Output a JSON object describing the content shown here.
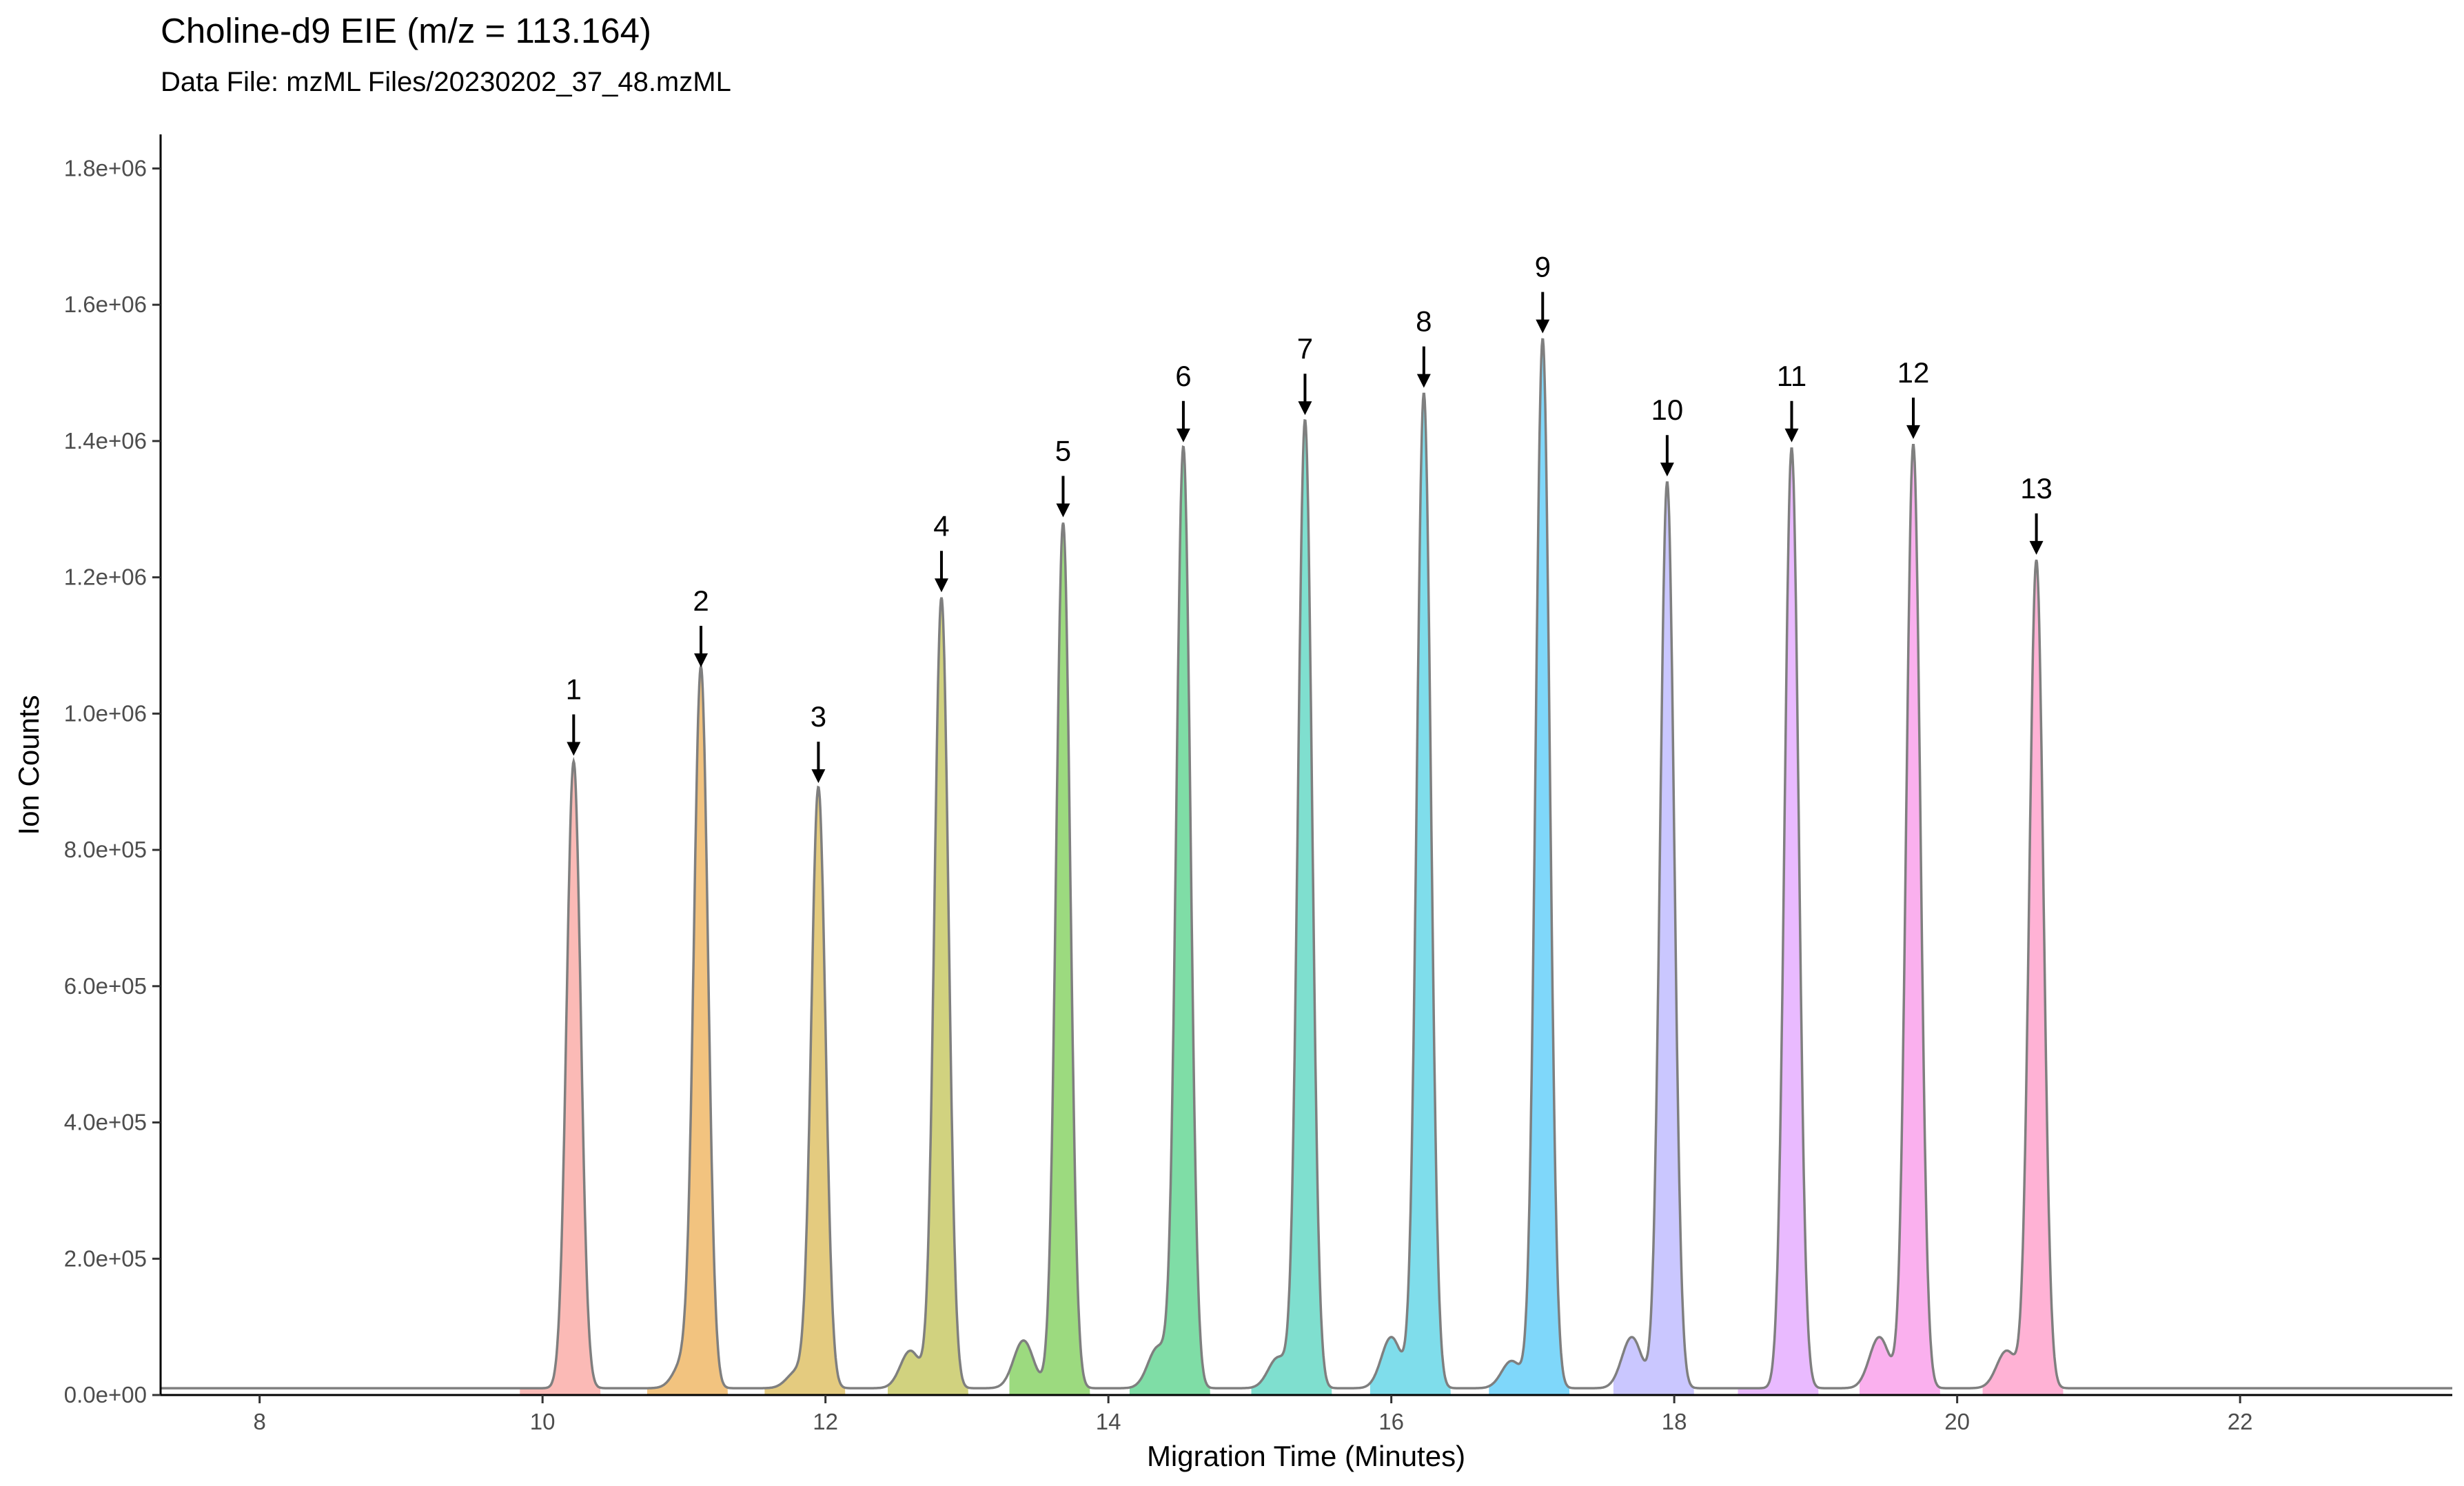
{
  "chart_data": {
    "type": "area",
    "title": "Choline-d9 EIE (m/z = 113.164)",
    "subtitle": "Data File:  mzML Files/20230202_37_48.mzML",
    "xlabel": "Migration Time (Minutes)",
    "ylabel": "Ion Counts",
    "xlim": [
      7.3,
      23.5
    ],
    "ylim": [
      0,
      1850000
    ],
    "x_ticks": [
      8,
      10,
      12,
      14,
      16,
      18,
      20,
      22
    ],
    "x_tick_labels": [
      "8",
      "10",
      "12",
      "14",
      "16",
      "18",
      "20",
      "22"
    ],
    "y_ticks": [
      0,
      200000,
      400000,
      600000,
      800000,
      1000000,
      1200000,
      1400000,
      1600000,
      1800000
    ],
    "y_tick_labels": [
      "0.0e+00",
      "2.0e+05",
      "4.0e+05",
      "6.0e+05",
      "8.0e+05",
      "1.0e+06",
      "1.2e+06",
      "1.4e+06",
      "1.6e+06",
      "1.8e+06"
    ],
    "grid": false,
    "legend": "none",
    "baseline": 10000,
    "trace_color": "#7f7f7f",
    "peaks": [
      {
        "label": "1",
        "x": 10.22,
        "y": 930000,
        "color": "#F8766D"
      },
      {
        "label": "2",
        "x": 11.12,
        "y": 1060000,
        "color": "#E58700"
      },
      {
        "label": "3",
        "x": 11.95,
        "y": 890000,
        "color": "#C99800"
      },
      {
        "label": "4",
        "x": 12.82,
        "y": 1170000,
        "color": "#A3A500"
      },
      {
        "label": "5",
        "x": 13.68,
        "y": 1280000,
        "color": "#39B600"
      },
      {
        "label": "6",
        "x": 14.53,
        "y": 1390000,
        "color": "#00BB4E"
      },
      {
        "label": "7",
        "x": 15.39,
        "y": 1430000,
        "color": "#00BFA0"
      },
      {
        "label": "8",
        "x": 16.23,
        "y": 1470000,
        "color": "#00BCD8"
      },
      {
        "label": "9",
        "x": 17.07,
        "y": 1550000,
        "color": "#00B0F6"
      },
      {
        "label": "10",
        "x": 17.95,
        "y": 1340000,
        "color": "#9590FF"
      },
      {
        "label": "11",
        "x": 18.83,
        "y": 1390000,
        "color": "#D376FF"
      },
      {
        "label": "12",
        "x": 19.69,
        "y": 1395000,
        "color": "#F562DD"
      },
      {
        "label": "13",
        "x": 20.56,
        "y": 1225000,
        "color": "#FF65AC"
      }
    ],
    "shoulders": [
      {
        "x": 11.0,
        "y": 40000
      },
      {
        "x": 11.8,
        "y": 25000
      },
      {
        "x": 12.6,
        "y": 55000
      },
      {
        "x": 13.4,
        "y": 70000
      },
      {
        "x": 14.35,
        "y": 60000
      },
      {
        "x": 15.2,
        "y": 45000
      },
      {
        "x": 16.0,
        "y": 75000
      },
      {
        "x": 16.85,
        "y": 40000
      },
      {
        "x": 17.7,
        "y": 75000
      },
      {
        "x": 19.45,
        "y": 75000
      },
      {
        "x": 20.35,
        "y": 55000
      }
    ]
  }
}
